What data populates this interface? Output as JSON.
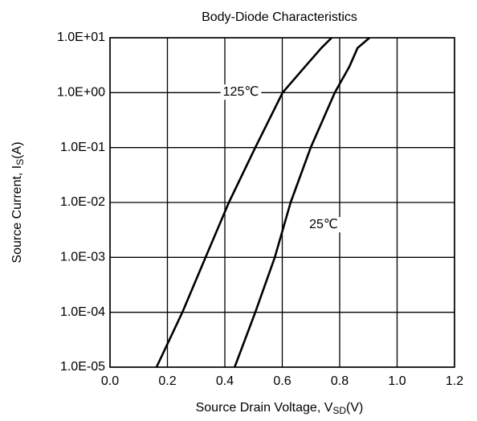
{
  "chart_data": {
    "type": "line",
    "title": "Body-Diode Characteristics",
    "x_label": [
      "Source Drain Voltage, V",
      "SD",
      "(V)"
    ],
    "y_label": [
      "Source Current, I",
      "S",
      "(A)"
    ],
    "xlim": [
      0,
      1.2
    ],
    "xticks": [
      {
        "value": 0,
        "label": "0.0"
      },
      0.2,
      0.4,
      0.6,
      0.8,
      {
        "value": 1,
        "label": "1.0"
      },
      1.2
    ],
    "ylim": [
      1e-05,
      10
    ],
    "yticks": [
      {
        "value": 10,
        "label": "1.0E+01"
      },
      {
        "value": 1,
        "label": "1.0E+00"
      },
      {
        "value": 0.1,
        "label": "1.0E-01"
      },
      {
        "value": 0.01,
        "label": "1.0E-02"
      },
      {
        "value": 0.001,
        "label": "1.0E-03"
      },
      {
        "value": 0.0001,
        "label": "1.0E-04"
      },
      {
        "value": 1e-05,
        "label": "1.0E-05"
      }
    ],
    "y_log": true,
    "grid": true,
    "series": [
      {
        "name": "125℃",
        "color": "#000000",
        "x": [
          0.162,
          0.252,
          0.333,
          0.414,
          0.506,
          0.601,
          0.68,
          0.736,
          0.772
        ],
        "values": [
          1e-05,
          0.0001,
          0.001,
          0.01,
          0.1,
          1,
          3.0,
          6.5,
          10
        ]
      },
      {
        "name": "25℃",
        "color": "#000000",
        "x": [
          0.434,
          0.506,
          0.574,
          0.629,
          0.699,
          0.783,
          0.834,
          0.862,
          0.904
        ],
        "values": [
          1e-05,
          0.0001,
          0.001,
          0.01,
          0.1,
          1,
          3.0,
          6.5,
          10
        ]
      }
    ]
  }
}
